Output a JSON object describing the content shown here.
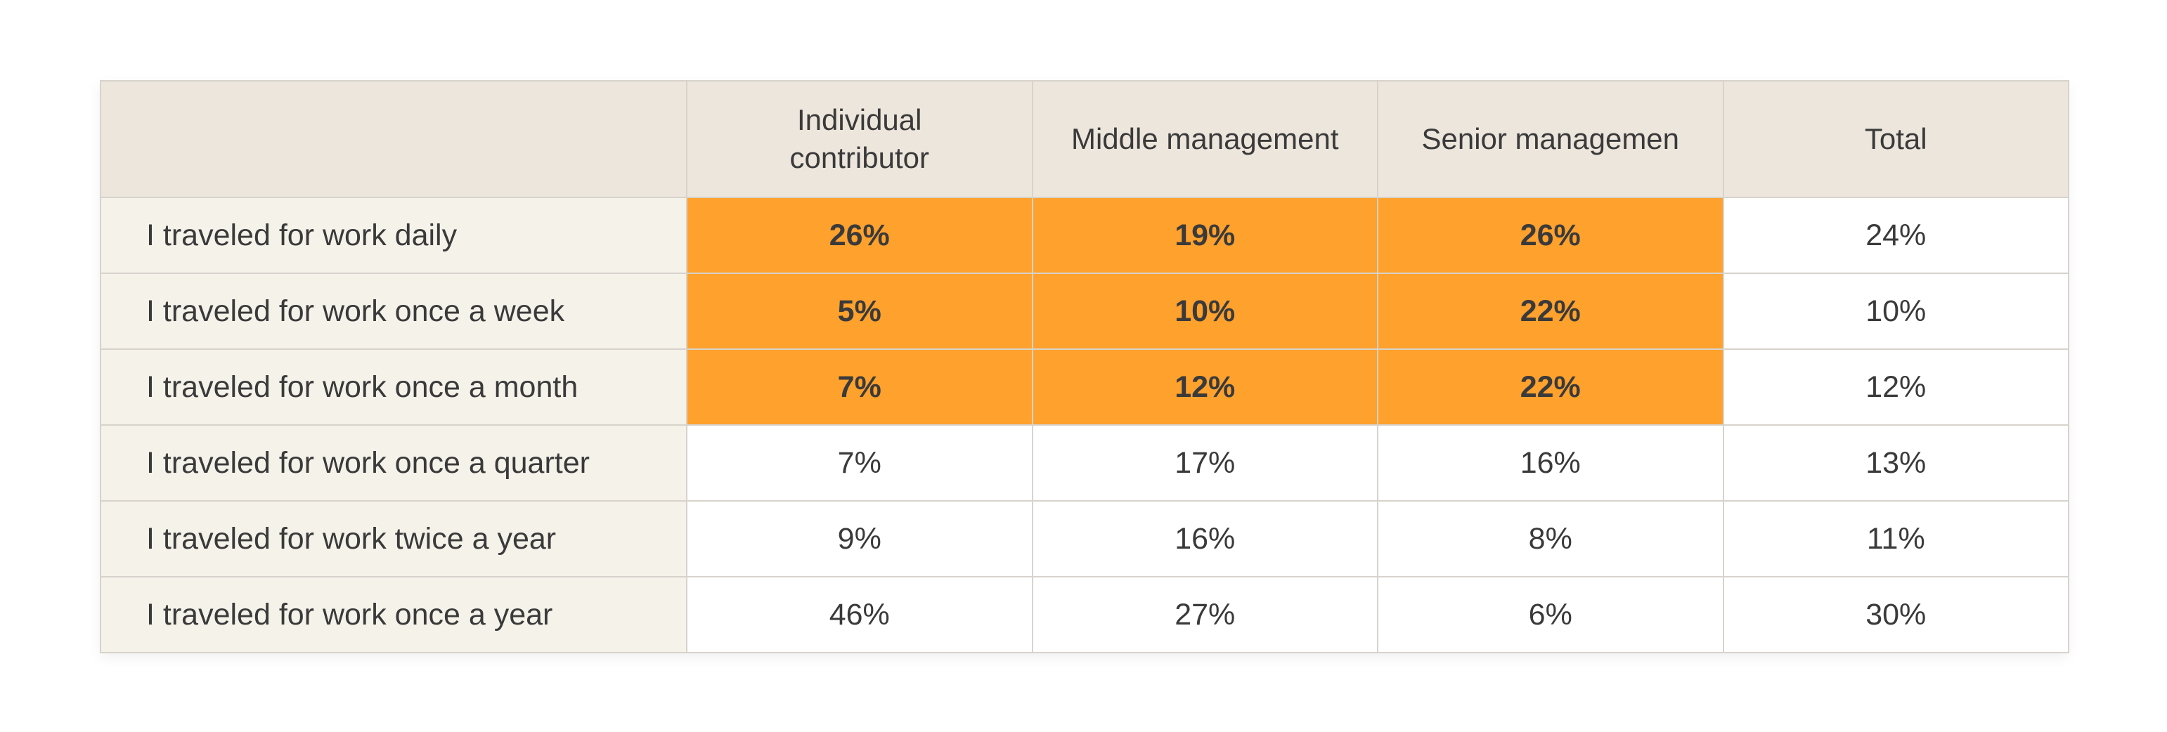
{
  "chart_data": {
    "type": "table",
    "columns": [
      "",
      "Individual contributor",
      "Middle management",
      "Senior managemen",
      "Total"
    ],
    "rows": [
      {
        "label": "I traveled for work daily",
        "values": [
          "26%",
          "19%",
          "26%",
          "24%"
        ],
        "highlight": [
          true,
          true,
          true,
          false
        ]
      },
      {
        "label": "I traveled for work once a week",
        "values": [
          "5%",
          "10%",
          "22%",
          "10%"
        ],
        "highlight": [
          true,
          true,
          true,
          false
        ]
      },
      {
        "label": "I traveled for work once a month",
        "values": [
          "7%",
          "12%",
          "22%",
          "12%"
        ],
        "highlight": [
          true,
          true,
          true,
          false
        ]
      },
      {
        "label": "I traveled for work once a quarter",
        "values": [
          "7%",
          "17%",
          "16%",
          "13%"
        ],
        "highlight": [
          false,
          false,
          false,
          false
        ]
      },
      {
        "label": "I traveled for work twice a year",
        "values": [
          "9%",
          "16%",
          "8%",
          "11%"
        ],
        "highlight": [
          false,
          false,
          false,
          false
        ]
      },
      {
        "label": "I traveled for work once a year",
        "values": [
          "46%",
          "27%",
          "6%",
          "30%"
        ],
        "highlight": [
          false,
          false,
          false,
          false
        ]
      }
    ],
    "colors": {
      "header_bg": "#ede6dc",
      "label_bg": "#f5f2ea",
      "highlight_bg": "#ffa12d",
      "cell_bg": "#ffffff",
      "border": "#d7d3cc",
      "text": "#3a3a3a"
    }
  }
}
